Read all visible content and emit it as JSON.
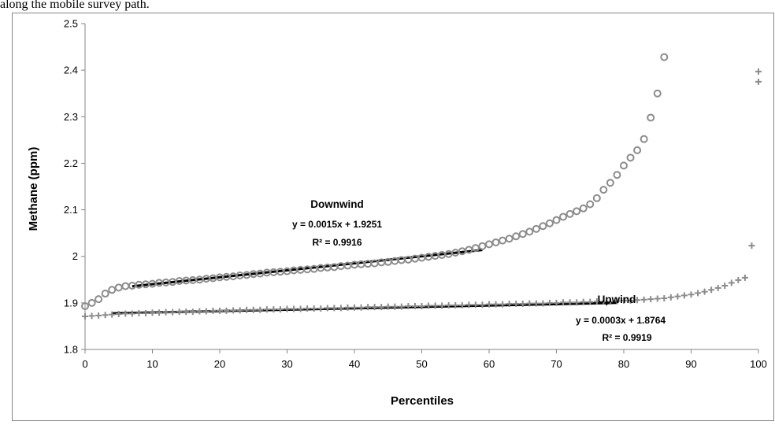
{
  "caption_fragment": "along the mobile survey path.",
  "chart_data": {
    "type": "scatter",
    "title": "",
    "xlabel": "Percentiles",
    "ylabel": "Methane (ppm)",
    "xlim": [
      0,
      100
    ],
    "ylim": [
      1.8,
      2.5
    ],
    "x_ticks": [
      0,
      10,
      20,
      30,
      40,
      50,
      60,
      70,
      80,
      90,
      100
    ],
    "y_ticks": [
      1.8,
      1.9,
      2.0,
      2.1,
      2.2,
      2.3,
      2.4,
      2.5
    ],
    "x_tick_labels": [
      "0",
      "10",
      "20",
      "30",
      "40",
      "50",
      "60",
      "70",
      "80",
      "90",
      "100"
    ],
    "y_tick_labels": [
      "1.8",
      "1.9",
      "2",
      "2.1",
      "2.2",
      "2.3",
      "2.4",
      "2.5"
    ],
    "grid": false,
    "legend": "none",
    "series": [
      {
        "name": "Downwind",
        "marker": "circle",
        "color": "#8c8c8c",
        "x": [
          0,
          1,
          2,
          3,
          4,
          5,
          6,
          7,
          8,
          9,
          10,
          11,
          12,
          13,
          14,
          15,
          16,
          17,
          18,
          19,
          20,
          21,
          22,
          23,
          24,
          25,
          26,
          27,
          28,
          29,
          30,
          31,
          32,
          33,
          34,
          35,
          36,
          37,
          38,
          39,
          40,
          41,
          42,
          43,
          44,
          45,
          46,
          47,
          48,
          49,
          50,
          51,
          52,
          53,
          54,
          55,
          56,
          57,
          58,
          59,
          60,
          61,
          62,
          63,
          64,
          65,
          66,
          67,
          68,
          69,
          70,
          71,
          72,
          73,
          74,
          75,
          76,
          77,
          78,
          79,
          80,
          81,
          82,
          83,
          84,
          85,
          86
        ],
        "y": [
          1.893,
          1.9,
          1.908,
          1.92,
          1.928,
          1.933,
          1.936,
          1.937,
          1.939,
          1.94,
          1.941,
          1.943,
          1.944,
          1.945,
          1.947,
          1.948,
          1.949,
          1.95,
          1.952,
          1.953,
          1.955,
          1.956,
          1.957,
          1.959,
          1.96,
          1.962,
          1.963,
          1.965,
          1.966,
          1.967,
          1.968,
          1.97,
          1.971,
          1.972,
          1.973,
          1.975,
          1.976,
          1.977,
          1.979,
          1.98,
          1.982,
          1.983,
          1.984,
          1.985,
          1.987,
          1.988,
          1.99,
          1.992,
          1.993,
          1.995,
          1.997,
          1.999,
          2.001,
          2.003,
          2.005,
          2.008,
          2.011,
          2.014,
          2.018,
          2.022,
          2.026,
          2.03,
          2.034,
          2.038,
          2.043,
          2.048,
          2.053,
          2.059,
          2.065,
          2.071,
          2.078,
          2.085,
          2.091,
          2.097,
          2.103,
          2.112,
          2.125,
          2.143,
          2.158,
          2.175,
          2.195,
          2.212,
          2.228,
          2.252,
          2.298,
          2.35,
          2.428
        ]
      },
      {
        "name": "Upwind",
        "marker": "plus",
        "color": "#8c8c8c",
        "x": [
          0,
          1,
          2,
          3,
          4,
          5,
          6,
          7,
          8,
          9,
          10,
          11,
          12,
          13,
          14,
          15,
          16,
          17,
          18,
          19,
          20,
          21,
          22,
          23,
          24,
          25,
          26,
          27,
          28,
          29,
          30,
          31,
          32,
          33,
          34,
          35,
          36,
          37,
          38,
          39,
          40,
          41,
          42,
          43,
          44,
          45,
          46,
          47,
          48,
          49,
          50,
          51,
          52,
          53,
          54,
          55,
          56,
          57,
          58,
          59,
          60,
          61,
          62,
          63,
          64,
          65,
          66,
          67,
          68,
          69,
          70,
          71,
          72,
          73,
          74,
          75,
          76,
          77,
          78,
          79,
          80,
          81,
          82,
          83,
          84,
          85,
          86,
          87,
          88,
          89,
          90,
          91,
          92,
          93,
          94,
          95,
          96,
          97,
          98,
          99,
          100,
          100
        ],
        "y": [
          1.871,
          1.872,
          1.873,
          1.874,
          1.875,
          1.876,
          1.877,
          1.877,
          1.878,
          1.878,
          1.879,
          1.879,
          1.88,
          1.88,
          1.881,
          1.881,
          1.881,
          1.882,
          1.882,
          1.883,
          1.883,
          1.883,
          1.884,
          1.884,
          1.885,
          1.885,
          1.885,
          1.886,
          1.886,
          1.886,
          1.887,
          1.887,
          1.887,
          1.888,
          1.888,
          1.888,
          1.889,
          1.889,
          1.889,
          1.89,
          1.89,
          1.89,
          1.891,
          1.891,
          1.891,
          1.892,
          1.892,
          1.892,
          1.893,
          1.893,
          1.893,
          1.894,
          1.894,
          1.894,
          1.895,
          1.895,
          1.895,
          1.896,
          1.896,
          1.896,
          1.897,
          1.897,
          1.897,
          1.898,
          1.898,
          1.898,
          1.899,
          1.899,
          1.899,
          1.9,
          1.9,
          1.901,
          1.901,
          1.901,
          1.902,
          1.902,
          1.903,
          1.903,
          1.903,
          1.904,
          1.905,
          1.905,
          1.906,
          1.907,
          1.908,
          1.909,
          1.91,
          1.912,
          1.914,
          1.916,
          1.918,
          1.921,
          1.924,
          1.928,
          1.932,
          1.937,
          1.943,
          1.949,
          1.954,
          2.023,
          2.375,
          2.397
        ]
      }
    ],
    "trendlines": [
      {
        "series": "Downwind",
        "slope": 0.0015,
        "intercept": 1.9251,
        "x_range": [
          7,
          59
        ],
        "equation": "y = 0.0015x + 1.9251",
        "r2": "R² = 0.9916"
      },
      {
        "series": "Upwind",
        "slope": 0.0003,
        "intercept": 1.8764,
        "x_range": [
          4,
          79
        ],
        "equation": "y = 0.0003x + 1.8764",
        "r2": "R² = 0.9919"
      }
    ]
  }
}
